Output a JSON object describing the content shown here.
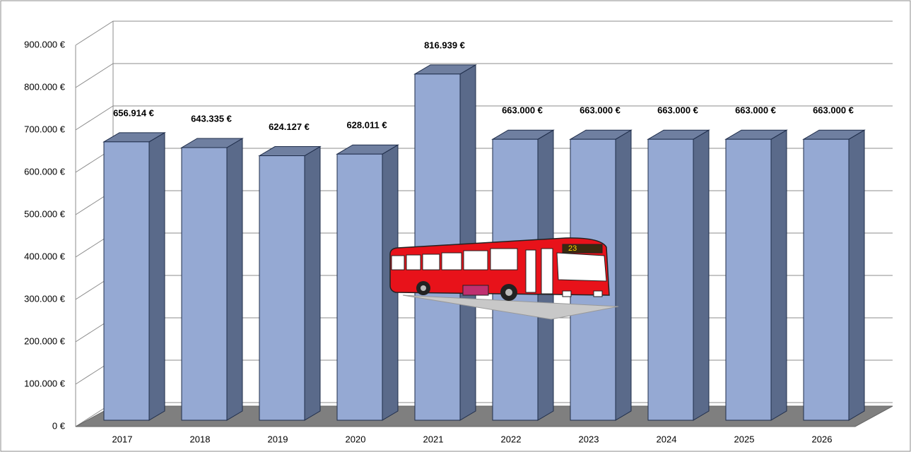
{
  "chart_data": {
    "type": "bar3d",
    "categories": [
      "2017",
      "2018",
      "2019",
      "2020",
      "2021",
      "2022",
      "2023",
      "2024",
      "2025",
      "2026"
    ],
    "values": [
      656914,
      643335,
      624127,
      628011,
      816939,
      663000,
      663000,
      663000,
      663000,
      663000
    ],
    "value_labels": [
      "656.914 €",
      "643.335 €",
      "624.127 €",
      "628.011 €",
      "816.939 €",
      "663.000 €",
      "663.000 €",
      "663.000 €",
      "663.000 €",
      "663.000 €"
    ],
    "color": "#95a9d3",
    "ylim": [
      0,
      900000
    ],
    "yticks": [
      {
        "value": 0,
        "label": "0 €"
      },
      {
        "value": 100000,
        "label": "100.000 €"
      },
      {
        "value": 200000,
        "label": "200.000 €"
      },
      {
        "value": 300000,
        "label": "300.000 €"
      },
      {
        "value": 400000,
        "label": "400.000 €"
      },
      {
        "value": 500000,
        "label": "500.000 €"
      },
      {
        "value": 600000,
        "label": "600.000 €"
      },
      {
        "value": 700000,
        "label": "700.000 €"
      },
      {
        "value": 800000,
        "label": "800.000 €"
      },
      {
        "value": 900000,
        "label": "900.000 €"
      }
    ],
    "grid": true
  }
}
